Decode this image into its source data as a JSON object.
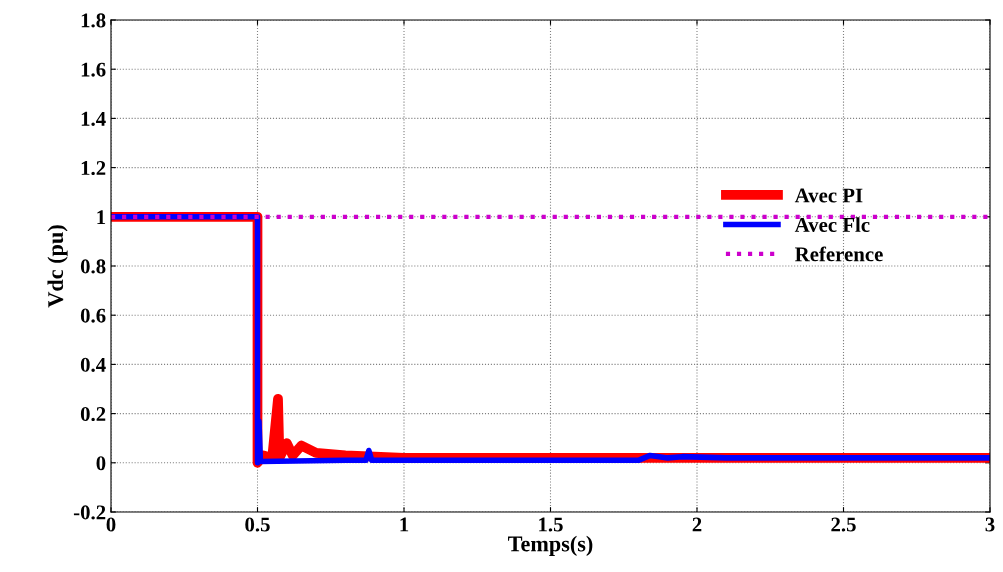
{
  "chart_data": {
    "type": "line",
    "xlabel": "Temps(s)",
    "ylabel": "Vdc (pu)",
    "xlim": [
      0,
      3
    ],
    "xticks": [
      0,
      0.5,
      1,
      1.5,
      2,
      2.5,
      3
    ],
    "ylim": [
      -0.2,
      1.8
    ],
    "yticks": [
      -0.2,
      0,
      0.2,
      0.4,
      0.6,
      0.8,
      1,
      1.2,
      1.4,
      1.6,
      1.8
    ],
    "grid": true,
    "legend": "right",
    "series": [
      {
        "name": "Avec PI",
        "color": "#ff0000",
        "line_style": "solid",
        "x": [
          0,
          0.5,
          0.5,
          0.52,
          0.55,
          0.57,
          0.575,
          0.6,
          0.62,
          0.65,
          0.7,
          0.8,
          1,
          3
        ],
        "values": [
          1,
          1,
          0,
          0.03,
          0.02,
          0.26,
          0.02,
          0.08,
          0.03,
          0.07,
          0.04,
          0.03,
          0.02,
          0.02
        ]
      },
      {
        "name": "Avec Flc",
        "color": "#0000ff",
        "line_style": "solid",
        "x": [
          0,
          0.5,
          0.5,
          0.505,
          0.51,
          0.8,
          0.87,
          0.88,
          0.89,
          1.06,
          1.8,
          1.84,
          1.9,
          1.95,
          2.1,
          3
        ],
        "values": [
          1,
          1,
          0,
          0.17,
          0.005,
          0.01,
          0.01,
          0.05,
          0.01,
          0.01,
          0.01,
          0.03,
          0.02,
          0.025,
          0.02,
          0.02
        ]
      },
      {
        "name": "Reference",
        "color": "#cc00cc",
        "line_style": "dotted",
        "x": [
          0,
          3
        ],
        "values": [
          1,
          1
        ]
      }
    ]
  }
}
